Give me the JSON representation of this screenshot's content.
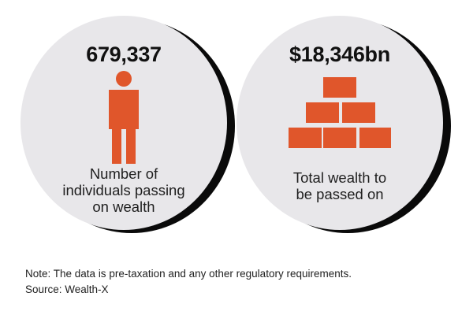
{
  "stats": [
    {
      "value": "679,337",
      "caption_lines": [
        "Number of",
        "individuals passing",
        "on wealth"
      ],
      "icon": "person-icon"
    },
    {
      "value": "$18,346bn",
      "caption_lines": [
        "Total wealth to",
        "be passed on"
      ],
      "icon": "gold-bars-icon"
    }
  ],
  "footer": {
    "note": "Note: The data is pre-taxation and any other regulatory requirements.",
    "source": "Source: Wealth-X"
  },
  "colors": {
    "accent": "#e0562b",
    "circle_fill": "#e8e7ea",
    "circle_shadow": "#0a0a0a",
    "text": "#111111"
  }
}
